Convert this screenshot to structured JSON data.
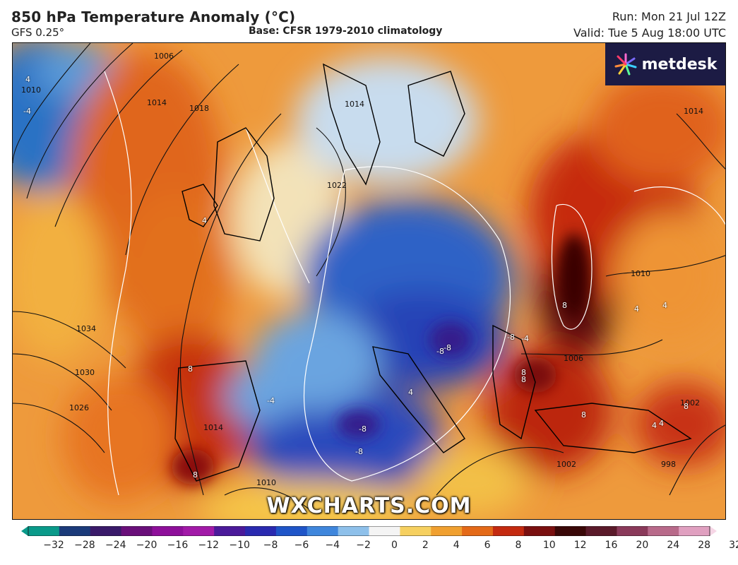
{
  "header": {
    "title": "850 hPa Temperature Anomaly (°C)",
    "model": "GFS 0.25°",
    "base": "Base: CFSR 1979-2010 climatology",
    "run": "Run: Mon 21 Jul 12Z",
    "valid": "Valid: Tue 5 Aug 18:00 UTC"
  },
  "logo": {
    "text": "metdesk",
    "icon": "metdesk-starburst-icon"
  },
  "watermark": "WXCHARTS.COM",
  "colorbar": {
    "ticks": [
      "−32",
      "−28",
      "−24",
      "−20",
      "−16",
      "−12",
      "−10",
      "−8",
      "−6",
      "−4",
      "−2",
      "0",
      "2",
      "4",
      "6",
      "8",
      "10",
      "12",
      "16",
      "20",
      "24",
      "28",
      "32"
    ],
    "colors": [
      "#0a9a8a",
      "#1b3b7a",
      "#3a1a6a",
      "#6a0f7a",
      "#8e0f9a",
      "#a21aa8",
      "#4b1a9a",
      "#2a2ab0",
      "#1f55c8",
      "#3f86dc",
      "#8ec0ea",
      "#f4f4f4",
      "#f6d060",
      "#f0a030",
      "#e46a18",
      "#c42a10",
      "#7a1010",
      "#3a0808",
      "#5a1a2a",
      "#8a3a5a",
      "#b86a8a",
      "#e0a0c0",
      "#f6d6e6"
    ]
  },
  "isobar_labels": [
    "1006",
    "1010",
    "1014",
    "1018",
    "1022",
    "1014",
    "1034",
    "1030",
    "1026",
    "1014",
    "1010",
    "1002",
    "1006",
    "1010",
    "1014",
    "998",
    "1002"
  ],
  "anomaly_labels": [
    "4",
    "-4",
    "4",
    "8",
    "-8",
    "-8",
    "-8",
    "-8",
    "8",
    "-4",
    "4",
    "-8",
    "-4",
    "4",
    "8",
    "8",
    "8",
    "8",
    "4",
    "4",
    "8",
    "4"
  ]
}
